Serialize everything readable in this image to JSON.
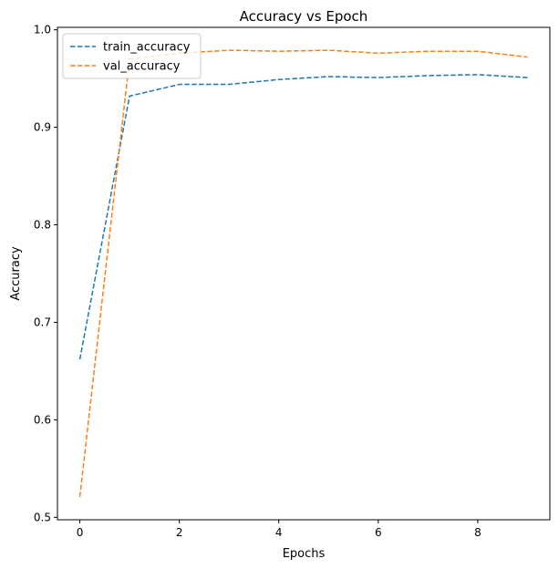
{
  "chart_data": {
    "type": "line",
    "title": "Accuracy vs Epoch",
    "xlabel": "Epochs",
    "ylabel": "Accuracy",
    "x": [
      0,
      1,
      2,
      3,
      4,
      5,
      6,
      7,
      8,
      9
    ],
    "xlim": [
      -0.45,
      9.45
    ],
    "ylim": [
      0.4975,
      1.0025
    ],
    "xticks": [
      0,
      2,
      4,
      6,
      8
    ],
    "yticks": [
      0.5,
      0.6,
      0.7,
      0.8,
      0.9,
      1.0
    ],
    "ytick_labels": [
      "0.5",
      "0.6",
      "0.7",
      "0.8",
      "0.9",
      "1.0"
    ],
    "grid": false,
    "legend_position": "upper-left",
    "series": [
      {
        "name": "train_accuracy",
        "color": "#1f77b4",
        "linestyle": "dashed",
        "values": [
          0.662,
          0.932,
          0.944,
          0.944,
          0.949,
          0.952,
          0.951,
          0.953,
          0.954,
          0.951
        ]
      },
      {
        "name": "val_accuracy",
        "color": "#ff7f0e",
        "linestyle": "dashed",
        "values": [
          0.521,
          0.97,
          0.976,
          0.979,
          0.978,
          0.979,
          0.976,
          0.978,
          0.978,
          0.972
        ]
      }
    ]
  }
}
